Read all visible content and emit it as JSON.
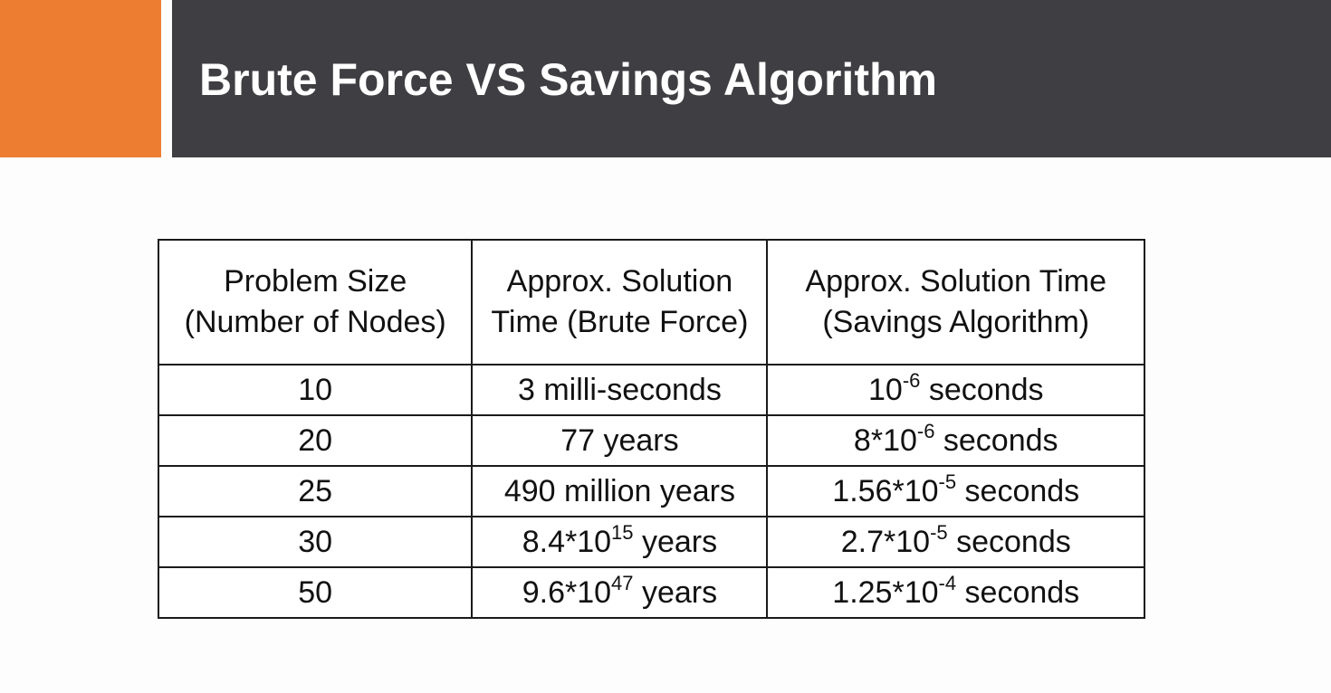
{
  "slide": {
    "title": "Brute Force VS Savings Algorithm",
    "colors": {
      "accent": "#ed7d31",
      "title_bar": "#3f3e42",
      "title_text": "#ffffff"
    }
  },
  "table": {
    "headers": [
      {
        "line1": "Problem Size",
        "line2": "(Number of Nodes)"
      },
      {
        "line1": "Approx. Solution",
        "line2": "Time (Brute Force)"
      },
      {
        "line1": "Approx. Solution Time",
        "line2": "(Savings Algorithm)"
      }
    ],
    "rows": [
      {
        "size": "10",
        "brute": {
          "base": "3 milli-seconds",
          "exp": "",
          "unit": ""
        },
        "savings": {
          "base": "10",
          "exp": "-6",
          "unit": " seconds"
        }
      },
      {
        "size": "20",
        "brute": {
          "base": "77 years",
          "exp": "",
          "unit": ""
        },
        "savings": {
          "base": "8*10",
          "exp": "-6",
          "unit": " seconds"
        }
      },
      {
        "size": "25",
        "brute": {
          "base": "490 million years",
          "exp": "",
          "unit": ""
        },
        "savings": {
          "base": "1.56*10",
          "exp": "-5",
          "unit": " seconds"
        }
      },
      {
        "size": "30",
        "brute": {
          "base": "8.4*10",
          "exp": "15",
          "unit": " years"
        },
        "savings": {
          "base": "2.7*10",
          "exp": "-5",
          "unit": " seconds"
        }
      },
      {
        "size": "50",
        "brute": {
          "base": "9.6*10",
          "exp": "47",
          "unit": " years"
        },
        "savings": {
          "base": "1.25*10",
          "exp": "-4",
          "unit": " seconds"
        }
      }
    ]
  }
}
